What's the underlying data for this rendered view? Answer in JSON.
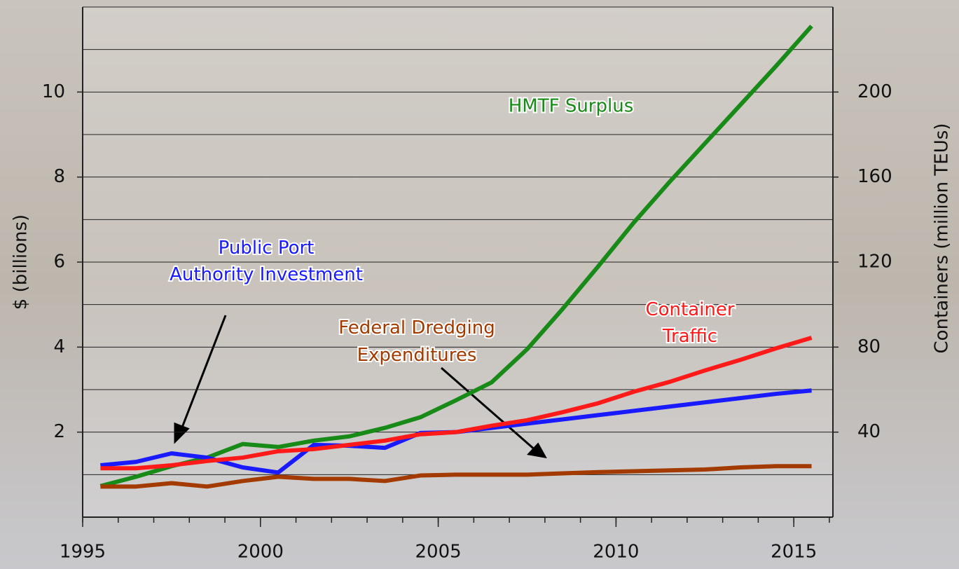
{
  "chart_data": {
    "type": "line",
    "y_label": "$ (billions)",
    "y2_label": "Containers (million TEUs)",
    "x": [
      1995.5,
      1996.5,
      1997.5,
      1998.5,
      1999.5,
      2000.5,
      2001.5,
      2002.5,
      2003.5,
      2004.5,
      2005.5,
      2006.5,
      2007.5,
      2008.5,
      2009.5,
      2010.5,
      2011.5,
      2012.5,
      2013.5,
      2014.5,
      2015.5
    ],
    "series": [
      {
        "name": "HMTF Surplus",
        "color": "#188a18",
        "values": [
          0.73,
          0.95,
          1.2,
          1.4,
          1.72,
          1.65,
          1.8,
          1.9,
          2.1,
          2.35,
          2.75,
          3.17,
          3.95,
          4.9,
          5.9,
          6.93,
          7.88,
          8.79,
          9.7,
          10.61,
          11.55
        ]
      },
      {
        "name": "Public Port Authority Investment",
        "color": "#1a1aff",
        "values": [
          1.22,
          1.3,
          1.5,
          1.4,
          1.17,
          1.05,
          1.7,
          1.68,
          1.63,
          1.98,
          2.0,
          2.1,
          2.2,
          2.3,
          2.4,
          2.5,
          2.6,
          2.7,
          2.8,
          2.9,
          2.98
        ]
      },
      {
        "name": "Container Traffic",
        "color": "#ff1a1a",
        "axis": "y2",
        "values": [
          23,
          23,
          24.4,
          26.4,
          28,
          31,
          32,
          34,
          36,
          39,
          40,
          43,
          45.6,
          49.4,
          53.6,
          59,
          63.6,
          69,
          74,
          79.4,
          84.4
        ]
      },
      {
        "name": "Federal Dredging Expenditures",
        "color": "#a33a00",
        "values": [
          0.72,
          0.72,
          0.8,
          0.72,
          0.85,
          0.95,
          0.9,
          0.9,
          0.85,
          0.98,
          1.0,
          1.0,
          1.0,
          1.03,
          1.06,
          1.08,
          1.1,
          1.12,
          1.17,
          1.2,
          1.2
        ]
      }
    ],
    "xlim": [
      1995,
      2016.1
    ],
    "xticks": [
      1995,
      2000,
      2005,
      2010,
      2015
    ],
    "x_minor_step": 1,
    "ylim": [
      0,
      12
    ],
    "yticks": [
      2,
      4,
      6,
      8,
      10
    ],
    "y_minor_step": 1,
    "y2lim": [
      0,
      240
    ],
    "y2ticks": [
      40,
      80,
      120,
      160,
      200
    ],
    "grid": true
  }
}
